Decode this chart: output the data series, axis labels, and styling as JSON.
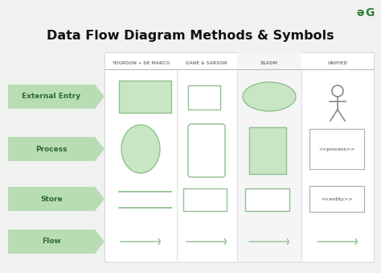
{
  "title": "Data Flow Diagram Methods & Symbols",
  "bg_color": "#f0f2f0",
  "title_color": "#111111",
  "grid_bg": "#ffffff",
  "shape_fill": "#c8e6c4",
  "shape_edge": "#90c090",
  "table_line_color": "#cccccc",
  "columns": [
    "YOURDON + DE MARCO",
    "GANE & SARSON",
    "SSADM",
    "UNIFIED"
  ],
  "rows": [
    "External Entry",
    "Process",
    "Store",
    "Flow"
  ],
  "row_label_bg": "#b8ddb4",
  "row_label_text": "#2d6a2d",
  "gg_logo_color": "#2e7d32",
  "person_color": "#888888",
  "text_box_edge": "#aaaaaa",
  "arrow_color": "#90c090"
}
